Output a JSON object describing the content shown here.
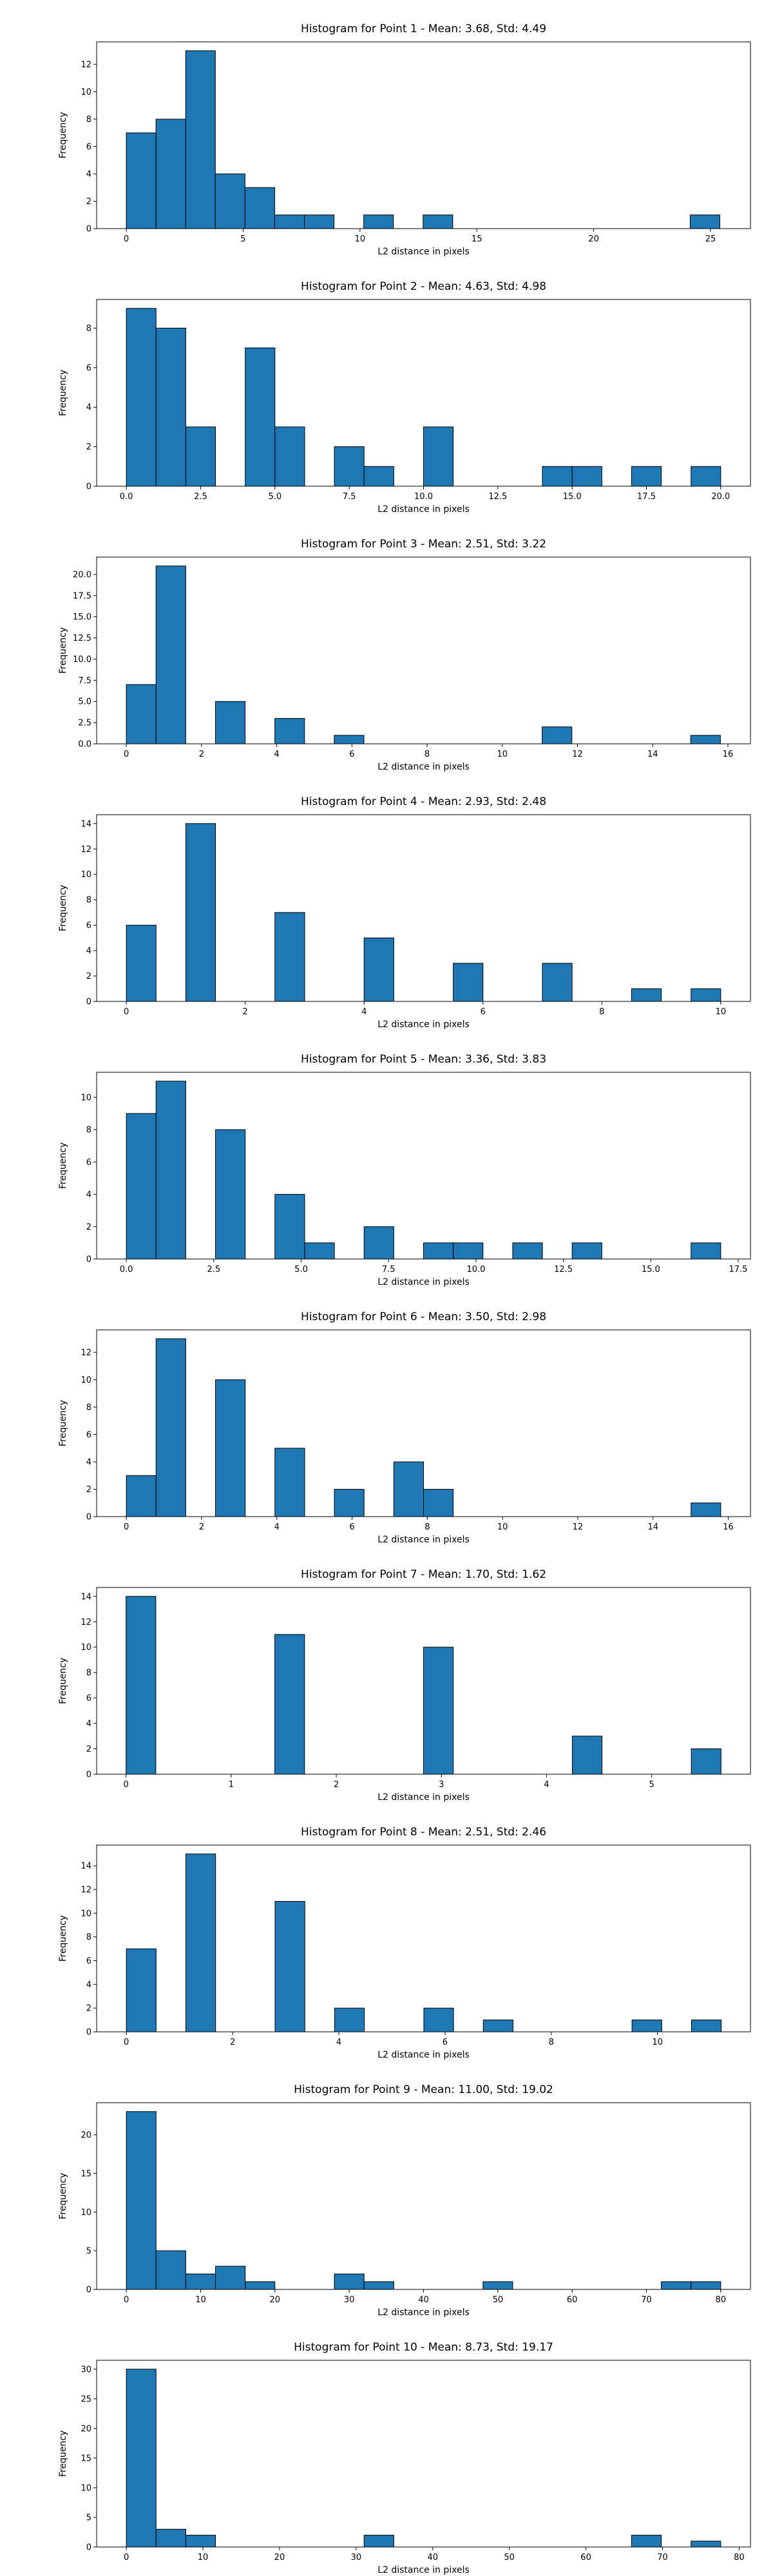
{
  "chart_data": [
    {
      "type": "bar",
      "title": "Histogram for Point 1 - Mean: 3.68, Std: 4.49",
      "xlabel": "L2 distance in pixels",
      "ylabel": "Frequency",
      "xlim": [
        -1.27,
        26.71
      ],
      "ylim": [
        0,
        13.65
      ],
      "xticks": [
        0,
        5,
        10,
        15,
        20,
        25
      ],
      "xtick_labels": [
        "0",
        "5",
        "10",
        "15",
        "20",
        "25"
      ],
      "yticks": [
        0,
        2,
        4,
        6,
        8,
        10,
        12
      ],
      "ytick_labels": [
        "0",
        "2",
        "4",
        "6",
        "8",
        "10",
        "12"
      ],
      "bin_edges": [
        0,
        1.27,
        2.54,
        3.81,
        5.08,
        6.35,
        7.62,
        8.89,
        10.16,
        11.43,
        12.7,
        13.97,
        15.24,
        16.51,
        17.78,
        19.05,
        20.32,
        21.59,
        22.86,
        24.13,
        25.4
      ],
      "values": [
        7,
        8,
        13,
        4,
        3,
        1,
        1,
        0,
        1,
        0,
        1,
        0,
        0,
        0,
        0,
        0,
        0,
        0,
        0,
        1
      ],
      "grid": false,
      "bar_color": "#1f77b4"
    },
    {
      "type": "bar",
      "title": "Histogram for Point 2 - Mean: 4.63, Std: 4.98",
      "xlabel": "L2 distance in pixels",
      "ylabel": "Frequency",
      "xlim": [
        -1.0,
        21.0
      ],
      "ylim": [
        0,
        9.45
      ],
      "xticks": [
        0,
        2.5,
        5,
        7.5,
        10,
        12.5,
        15,
        17.5,
        20
      ],
      "xtick_labels": [
        "0.0",
        "2.5",
        "5.0",
        "7.5",
        "10.0",
        "12.5",
        "15.0",
        "17.5",
        "20.0"
      ],
      "yticks": [
        0,
        2,
        4,
        6,
        8
      ],
      "ytick_labels": [
        "0",
        "2",
        "4",
        "6",
        "8"
      ],
      "bin_edges": [
        0,
        1,
        2,
        3,
        4,
        5,
        6,
        7,
        8,
        9,
        10,
        11,
        12,
        13,
        14,
        15,
        16,
        17,
        18,
        19,
        20
      ],
      "values": [
        9,
        8,
        3,
        0,
        7,
        3,
        0,
        2,
        1,
        0,
        3,
        0,
        0,
        0,
        1,
        1,
        0,
        1,
        0,
        1
      ],
      "grid": false,
      "bar_color": "#1f77b4"
    },
    {
      "type": "bar",
      "title": "Histogram for Point 3 - Mean: 2.51, Std: 3.22",
      "xlabel": "L2 distance in pixels",
      "ylabel": "Frequency",
      "xlim": [
        -0.79,
        16.6
      ],
      "ylim": [
        0,
        22.05
      ],
      "xticks": [
        0,
        2,
        4,
        6,
        8,
        10,
        12,
        14,
        16
      ],
      "xtick_labels": [
        "0",
        "2",
        "4",
        "6",
        "8",
        "10",
        "12",
        "14",
        "16"
      ],
      "yticks": [
        0,
        2.5,
        5,
        7.5,
        10,
        12.5,
        15,
        17.5,
        20
      ],
      "ytick_labels": [
        "0.0",
        "2.5",
        "5.0",
        "7.5",
        "10.0",
        "12.5",
        "15.0",
        "17.5",
        "20.0"
      ],
      "bin_edges": [
        0,
        0.79,
        1.58,
        2.37,
        3.16,
        3.95,
        4.74,
        5.53,
        6.32,
        7.11,
        7.9,
        8.69,
        9.48,
        10.27,
        11.06,
        11.85,
        12.64,
        13.43,
        14.22,
        15.01,
        15.8
      ],
      "values": [
        7,
        21,
        0,
        5,
        0,
        3,
        0,
        1,
        0,
        0,
        0,
        0,
        0,
        0,
        2,
        0,
        0,
        0,
        0,
        1
      ],
      "grid": false,
      "bar_color": "#1f77b4"
    },
    {
      "type": "bar",
      "title": "Histogram for Point 4 - Mean: 2.93, Std: 2.48",
      "xlabel": "L2 distance in pixels",
      "ylabel": "Frequency",
      "xlim": [
        -0.5,
        10.5
      ],
      "ylim": [
        0,
        14.7
      ],
      "xticks": [
        0,
        2,
        4,
        6,
        8,
        10
      ],
      "xtick_labels": [
        "0",
        "2",
        "4",
        "6",
        "8",
        "10"
      ],
      "yticks": [
        0,
        2,
        4,
        6,
        8,
        10,
        12,
        14
      ],
      "ytick_labels": [
        "0",
        "2",
        "4",
        "6",
        "8",
        "10",
        "12",
        "14"
      ],
      "bin_edges": [
        0,
        0.5,
        1,
        1.5,
        2,
        2.5,
        3,
        3.5,
        4,
        4.5,
        5,
        5.5,
        6,
        6.5,
        7,
        7.5,
        8,
        8.5,
        9,
        9.5,
        10
      ],
      "values": [
        6,
        0,
        14,
        0,
        0,
        7,
        0,
        0,
        5,
        0,
        0,
        3,
        0,
        0,
        3,
        0,
        0,
        1,
        0,
        1
      ],
      "grid": false,
      "bar_color": "#1f77b4"
    },
    {
      "type": "bar",
      "title": "Histogram for Point 5 - Mean: 3.36, Std: 3.83",
      "xlabel": "L2 distance in pixels",
      "ylabel": "Frequency",
      "xlim": [
        -0.85,
        17.85
      ],
      "ylim": [
        0,
        11.55
      ],
      "xticks": [
        0,
        2.5,
        5,
        7.5,
        10,
        12.5,
        15,
        17.5
      ],
      "xtick_labels": [
        "0.0",
        "2.5",
        "5.0",
        "7.5",
        "10.0",
        "12.5",
        "15.0",
        "17.5"
      ],
      "yticks": [
        0,
        2,
        4,
        6,
        8,
        10
      ],
      "ytick_labels": [
        "0",
        "2",
        "4",
        "6",
        "8",
        "10"
      ],
      "bin_edges": [
        0,
        0.85,
        1.7,
        2.55,
        3.4,
        4.25,
        5.1,
        5.95,
        6.8,
        7.65,
        8.5,
        9.35,
        10.2,
        11.05,
        11.9,
        12.75,
        13.6,
        14.45,
        15.3,
        16.15,
        17
      ],
      "values": [
        9,
        11,
        0,
        8,
        0,
        4,
        1,
        0,
        2,
        0,
        1,
        1,
        0,
        1,
        0,
        1,
        0,
        0,
        0,
        1
      ],
      "grid": false,
      "bar_color": "#1f77b4"
    },
    {
      "type": "bar",
      "title": "Histogram for Point 6 - Mean: 3.50, Std: 2.98",
      "xlabel": "L2 distance in pixels",
      "ylabel": "Frequency",
      "xlim": [
        -0.79,
        16.59
      ],
      "ylim": [
        0,
        13.65
      ],
      "xticks": [
        0,
        2,
        4,
        6,
        8,
        10,
        12,
        14,
        16
      ],
      "xtick_labels": [
        "0",
        "2",
        "4",
        "6",
        "8",
        "10",
        "12",
        "14",
        "16"
      ],
      "yticks": [
        0,
        2,
        4,
        6,
        8,
        10,
        12
      ],
      "ytick_labels": [
        "0",
        "2",
        "4",
        "6",
        "8",
        "10",
        "12"
      ],
      "bin_edges": [
        0,
        0.79,
        1.58,
        2.37,
        3.16,
        3.95,
        4.74,
        5.53,
        6.32,
        7.11,
        7.9,
        8.69,
        9.48,
        10.27,
        11.06,
        11.85,
        12.64,
        13.43,
        14.22,
        15.01,
        15.8
      ],
      "values": [
        3,
        13,
        0,
        10,
        0,
        5,
        0,
        2,
        0,
        4,
        2,
        0,
        0,
        0,
        0,
        0,
        0,
        0,
        0,
        1
      ],
      "grid": false,
      "bar_color": "#1f77b4"
    },
    {
      "type": "bar",
      "title": "Histogram for Point 7 - Mean: 1.70, Std: 1.62",
      "xlabel": "L2 distance in pixels",
      "ylabel": "Frequency",
      "xlim": [
        -0.28,
        5.94
      ],
      "ylim": [
        0,
        14.7
      ],
      "xticks": [
        0,
        1,
        2,
        3,
        4,
        5
      ],
      "xtick_labels": [
        "0",
        "1",
        "2",
        "3",
        "4",
        "5"
      ],
      "yticks": [
        0,
        2,
        4,
        6,
        8,
        10,
        12,
        14
      ],
      "ytick_labels": [
        "0",
        "2",
        "4",
        "6",
        "8",
        "10",
        "12",
        "14"
      ],
      "bin_edges": [
        0,
        0.283,
        0.566,
        0.849,
        1.132,
        1.415,
        1.698,
        1.981,
        2.264,
        2.547,
        2.83,
        3.113,
        3.396,
        3.679,
        3.962,
        4.245,
        4.528,
        4.811,
        5.094,
        5.377,
        5.66
      ],
      "values": [
        14,
        0,
        0,
        0,
        0,
        11,
        0,
        0,
        0,
        0,
        10,
        0,
        0,
        0,
        0,
        3,
        0,
        0,
        0,
        2
      ],
      "grid": false,
      "bar_color": "#1f77b4"
    },
    {
      "type": "bar",
      "title": "Histogram for Point 8 - Mean: 2.51, Std: 2.46",
      "xlabel": "L2 distance in pixels",
      "ylabel": "Frequency",
      "xlim": [
        -0.56,
        11.75
      ],
      "ylim": [
        0,
        15.75
      ],
      "xticks": [
        0,
        2,
        4,
        6,
        8,
        10
      ],
      "xtick_labels": [
        "0",
        "2",
        "4",
        "6",
        "8",
        "10"
      ],
      "yticks": [
        0,
        2,
        4,
        6,
        8,
        10,
        12,
        14
      ],
      "ytick_labels": [
        "0",
        "2",
        "4",
        "6",
        "8",
        "10",
        "12",
        "14"
      ],
      "bin_edges": [
        0,
        0.56,
        1.12,
        1.68,
        2.24,
        2.8,
        3.36,
        3.92,
        4.48,
        5.04,
        5.6,
        6.16,
        6.72,
        7.28,
        7.84,
        8.4,
        8.96,
        9.52,
        10.08,
        10.64,
        11.2
      ],
      "values": [
        7,
        0,
        15,
        0,
        0,
        11,
        0,
        2,
        0,
        0,
        2,
        0,
        1,
        0,
        0,
        0,
        0,
        1,
        0,
        1
      ],
      "grid": false,
      "bar_color": "#1f77b4"
    },
    {
      "type": "bar",
      "title": "Histogram for Point 9 - Mean: 11.00, Std: 19.02",
      "xlabel": "L2 distance in pixels",
      "ylabel": "Frequency",
      "xlim": [
        -4.0,
        84.0
      ],
      "ylim": [
        0,
        24.15
      ],
      "xticks": [
        0,
        10,
        20,
        30,
        40,
        50,
        60,
        70,
        80
      ],
      "xtick_labels": [
        "0",
        "10",
        "20",
        "30",
        "40",
        "50",
        "60",
        "70",
        "80"
      ],
      "yticks": [
        0,
        5,
        10,
        15,
        20
      ],
      "ytick_labels": [
        "0",
        "5",
        "10",
        "15",
        "20"
      ],
      "bin_edges": [
        0,
        4,
        8,
        12,
        16,
        20,
        24,
        28,
        32,
        36,
        40,
        44,
        48,
        52,
        56,
        60,
        64,
        68,
        72,
        76,
        80
      ],
      "values": [
        23,
        5,
        2,
        3,
        1,
        0,
        0,
        2,
        1,
        0,
        0,
        0,
        1,
        0,
        0,
        0,
        0,
        0,
        1,
        1
      ],
      "grid": false,
      "bar_color": "#1f77b4"
    },
    {
      "type": "bar",
      "title": "Histogram for Point 10 - Mean: 8.73, Std: 19.17",
      "xlabel": "L2 distance in pixels",
      "ylabel": "Frequency",
      "xlim": [
        -3.88,
        81.48
      ],
      "ylim": [
        0,
        31.5
      ],
      "xticks": [
        0,
        10,
        20,
        30,
        40,
        50,
        60,
        70,
        80
      ],
      "xtick_labels": [
        "0",
        "10",
        "20",
        "30",
        "40",
        "50",
        "60",
        "70",
        "80"
      ],
      "yticks": [
        0,
        5,
        10,
        15,
        20,
        25,
        30
      ],
      "ytick_labels": [
        "0",
        "5",
        "10",
        "15",
        "20",
        "25",
        "30"
      ],
      "bin_edges": [
        0,
        3.88,
        7.76,
        11.64,
        15.52,
        19.4,
        23.28,
        27.16,
        31.04,
        34.92,
        38.8,
        42.68,
        46.56,
        50.44,
        54.32,
        58.2,
        62.08,
        65.96,
        69.84,
        73.72,
        77.6
      ],
      "values": [
        30,
        3,
        2,
        0,
        0,
        0,
        0,
        0,
        2,
        0,
        0,
        0,
        0,
        0,
        0,
        0,
        0,
        2,
        0,
        1
      ],
      "grid": false,
      "bar_color": "#1f77b4"
    }
  ]
}
